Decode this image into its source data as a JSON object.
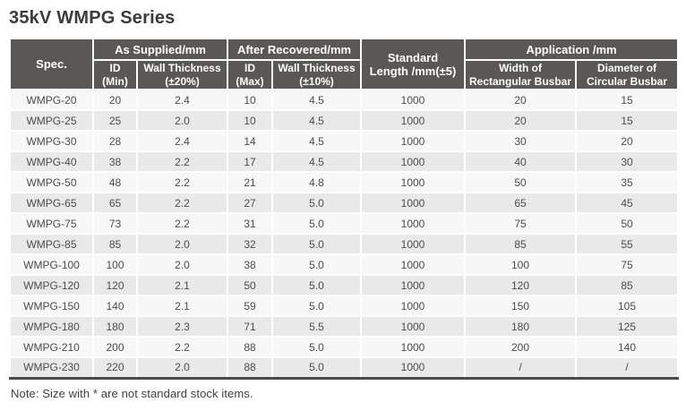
{
  "page": {
    "title": "35kV WMPG Series",
    "note": "Note: Size with * are not standard stock items."
  },
  "colors": {
    "header_bg": "#5b5754",
    "header_text": "#ffffff",
    "row_odd_bg": "#f7f7f7",
    "row_even_bg": "#e9e9e9",
    "cell_text": "#4c4c4c",
    "bottom_rule": "#4a4a4a",
    "title_text": "#3b3b3b"
  },
  "table": {
    "headers": {
      "spec": "Spec.",
      "as_supplied": "As Supplied/mm",
      "after_recovered": "After Recovered/mm",
      "standard_length": "Standard\nLength /mm(±5)",
      "application": "Application /mm",
      "id_min": "ID\n(Min)",
      "wall_thickness_20": "Wall Thickness\n(±20%)",
      "id_max": "ID\n(Max)",
      "wall_thickness_10": "Wall Thickness\n(±10%)",
      "width_rect": "Width of\nRectangular Busbar",
      "diameter_circ": "Diameter of\nCircular Busbar"
    },
    "column_keys": [
      "spec",
      "id-min",
      "wall-thickness-20",
      "id-max",
      "wall-thickness-10",
      "standard-length",
      "width-rectangular-busbar",
      "diameter-circular-busbar"
    ],
    "rows": [
      [
        "WMPG-20",
        "20",
        "2.4",
        "10",
        "4.5",
        "1000",
        "20",
        "15"
      ],
      [
        "WMPG-25",
        "25",
        "2.0",
        "10",
        "4.5",
        "1000",
        "20",
        "15"
      ],
      [
        "WMPG-30",
        "28",
        "2.4",
        "14",
        "4.5",
        "1000",
        "30",
        "20"
      ],
      [
        "WMPG-40",
        "38",
        "2.2",
        "17",
        "4.5",
        "1000",
        "40",
        "30"
      ],
      [
        "WMPG-50",
        "48",
        "2.2",
        "21",
        "4.8",
        "1000",
        "50",
        "35"
      ],
      [
        "WMPG-65",
        "65",
        "2.2",
        "27",
        "5.0",
        "1000",
        "65",
        "45"
      ],
      [
        "WMPG-75",
        "73",
        "2.2",
        "31",
        "5.0",
        "1000",
        "75",
        "50"
      ],
      [
        "WMPG-85",
        "85",
        "2.0",
        "32",
        "5.0",
        "1000",
        "85",
        "55"
      ],
      [
        "WMPG-100",
        "100",
        "2.0",
        "38",
        "5.0",
        "1000",
        "100",
        "75"
      ],
      [
        "WMPG-120",
        "120",
        "2.1",
        "50",
        "5.0",
        "1000",
        "120",
        "85"
      ],
      [
        "WMPG-150",
        "140",
        "2.1",
        "59",
        "5.0",
        "1000",
        "150",
        "105"
      ],
      [
        "WMPG-180",
        "180",
        "2.3",
        "71",
        "5.5",
        "1000",
        "180",
        "125"
      ],
      [
        "WMPG-210",
        "200",
        "2.2",
        "88",
        "5.0",
        "1000",
        "200",
        "140"
      ],
      [
        "WMPG-230",
        "220",
        "2.0",
        "88",
        "5.0",
        "1000",
        "/",
        "/"
      ]
    ]
  }
}
